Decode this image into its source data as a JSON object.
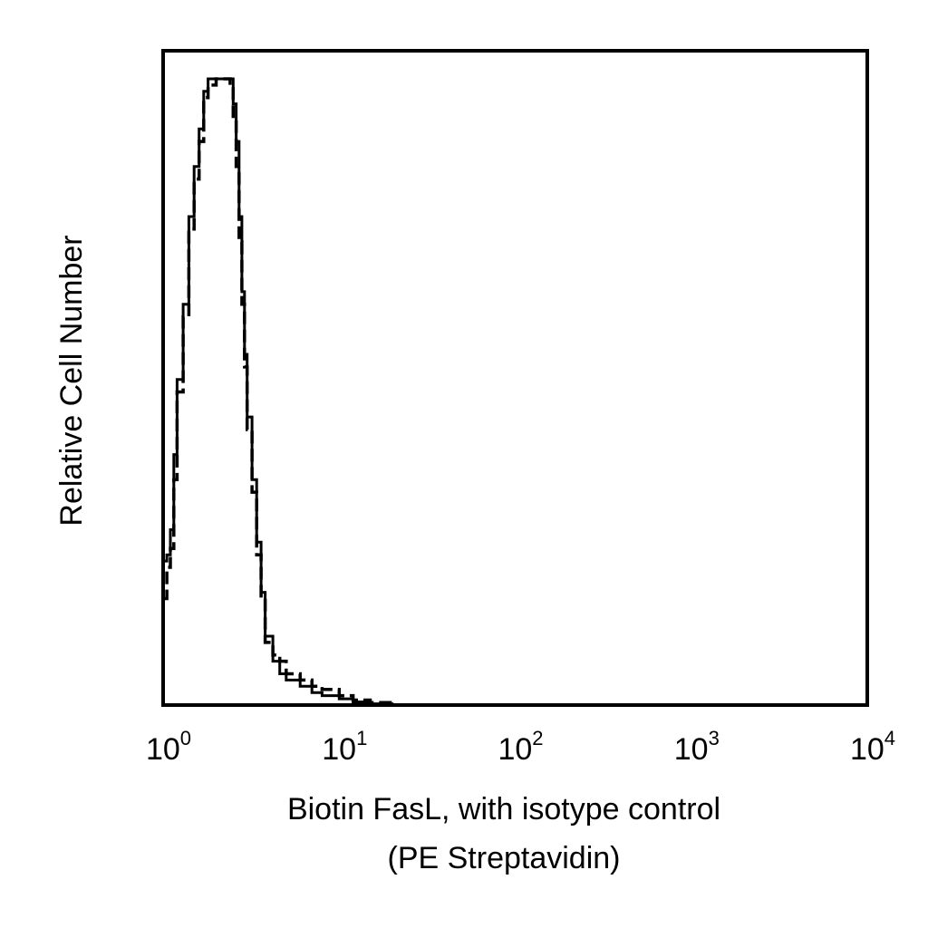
{
  "chart_data": {
    "type": "line",
    "title": "",
    "xlabel": "Biotin FasL, with isotype control",
    "xlabel_line2": "(PE Streptavidin)",
    "ylabel": "Relative Cell Number",
    "x_scale": "log",
    "xlim": [
      1,
      10000
    ],
    "ylim": [
      0,
      100
    ],
    "x_ticks": [
      {
        "base": "10",
        "exp": "0"
      },
      {
        "base": "10",
        "exp": "1"
      },
      {
        "base": "10",
        "exp": "2"
      },
      {
        "base": "10",
        "exp": "3"
      },
      {
        "base": "10",
        "exp": "4"
      }
    ],
    "grid": false,
    "legend": "none",
    "series": [
      {
        "style": "solid",
        "color": "#000000",
        "x": [
          1.0,
          1.05,
          1.1,
          1.15,
          1.2,
          1.3,
          1.4,
          1.5,
          1.6,
          1.7,
          1.8,
          2.0,
          2.2,
          2.4,
          2.5,
          2.6,
          2.7,
          2.8,
          2.9,
          3.0,
          3.2,
          3.4,
          3.6,
          3.8,
          4.2,
          4.6,
          5.0,
          6.0,
          7.0,
          8.0,
          10.0,
          12.0,
          15.0,
          20.0
        ],
        "y": [
          23,
          24,
          28,
          40,
          52,
          64,
          78,
          86,
          92,
          98,
          100,
          100,
          100,
          100,
          96,
          90,
          78,
          66,
          56,
          46,
          36,
          26,
          18,
          11,
          7,
          5,
          4,
          3,
          2,
          1.5,
          1,
          0.5,
          0.2,
          0
        ]
      },
      {
        "style": "dashed",
        "color": "#000000",
        "x": [
          1.0,
          1.05,
          1.1,
          1.15,
          1.2,
          1.3,
          1.4,
          1.5,
          1.6,
          1.7,
          1.8,
          2.0,
          2.2,
          2.4,
          2.5,
          2.6,
          2.7,
          2.8,
          2.9,
          3.0,
          3.2,
          3.4,
          3.6,
          3.8,
          4.2,
          4.6,
          5.0,
          6.0,
          7.0,
          8.0,
          10.0,
          12.0,
          15.0,
          20.0
        ],
        "y": [
          17,
          22,
          25,
          36,
          50,
          62,
          76,
          84,
          90,
          97,
          99,
          100,
          100,
          99,
          94,
          86,
          74,
          64,
          54,
          44,
          34,
          24,
          17,
          10,
          8,
          7,
          5,
          4,
          3,
          2.5,
          1.5,
          0.8,
          0.4,
          0
        ]
      }
    ]
  }
}
